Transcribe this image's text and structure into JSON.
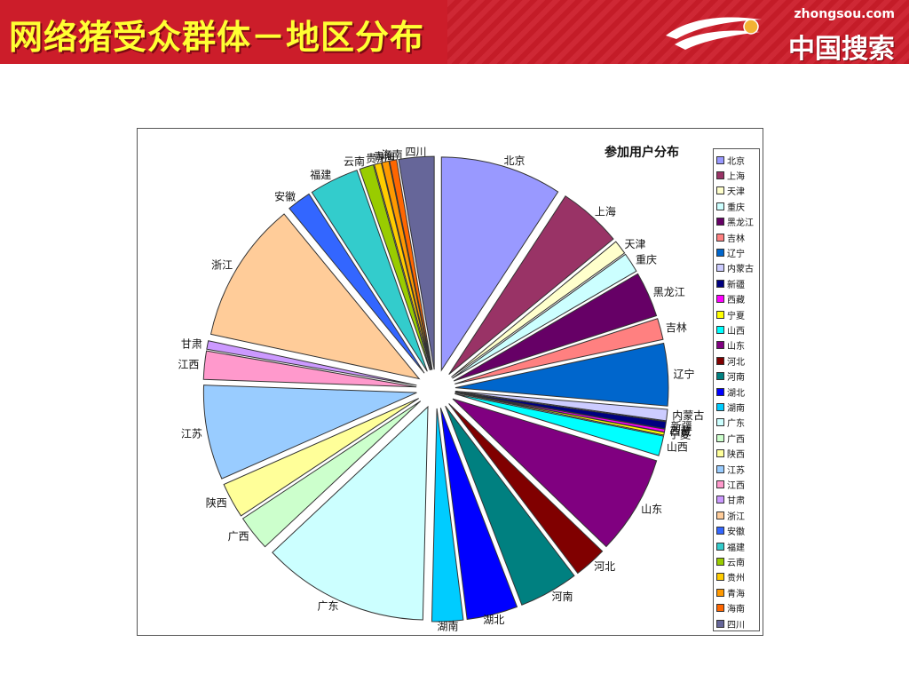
{
  "slide": {
    "title": "网络猪受众群体－地区分布",
    "logo": {
      "domain": "zhongsou.com",
      "brand": "中国搜索"
    }
  },
  "colors": {
    "header_bg": "#cc1d2a",
    "title_text": "#ffff33"
  },
  "chart_data": {
    "type": "pie",
    "style": "exploded",
    "title": "参加用户分布",
    "legend_position": "right",
    "categories": [
      "北京",
      "上海",
      "天津",
      "重庆",
      "黑龙江",
      "吉林",
      "辽宁",
      "内蒙古",
      "新疆",
      "西藏",
      "宁夏",
      "山西",
      "山东",
      "河北",
      "河南",
      "湖北",
      "湖南",
      "广东",
      "广西",
      "陕西",
      "江苏",
      "江西",
      "甘肃",
      "浙江",
      "安徽",
      "福建",
      "云南",
      "贵州",
      "青海",
      "海南",
      "四川"
    ],
    "values": [
      8.6,
      4.5,
      1.0,
      1.4,
      3.2,
      1.5,
      4.4,
      0.8,
      0.5,
      0.2,
      0.2,
      1.4,
      7.0,
      2.3,
      4.2,
      3.6,
      2.2,
      11.8,
      2.5,
      2.5,
      6.7,
      2.0,
      0.6,
      10.0,
      1.7,
      3.5,
      1.0,
      0.5,
      0.5,
      0.5,
      2.5
    ],
    "colors": [
      "#9999ff",
      "#993366",
      "#ffffcc",
      "#ccffff",
      "#660066",
      "#ff8080",
      "#0066cc",
      "#ccccff",
      "#000080",
      "#ff00ff",
      "#ffff00",
      "#00ffff",
      "#800080",
      "#800000",
      "#008080",
      "#0000ff",
      "#00ccff",
      "#ccffff",
      "#ccffcc",
      "#ffff99",
      "#99ccff",
      "#ff99cc",
      "#cc99ff",
      "#ffcc99",
      "#3366ff",
      "#33cccc",
      "#99cc00",
      "#ffcc00",
      "#ff9900",
      "#ff6600",
      "#666699"
    ]
  }
}
